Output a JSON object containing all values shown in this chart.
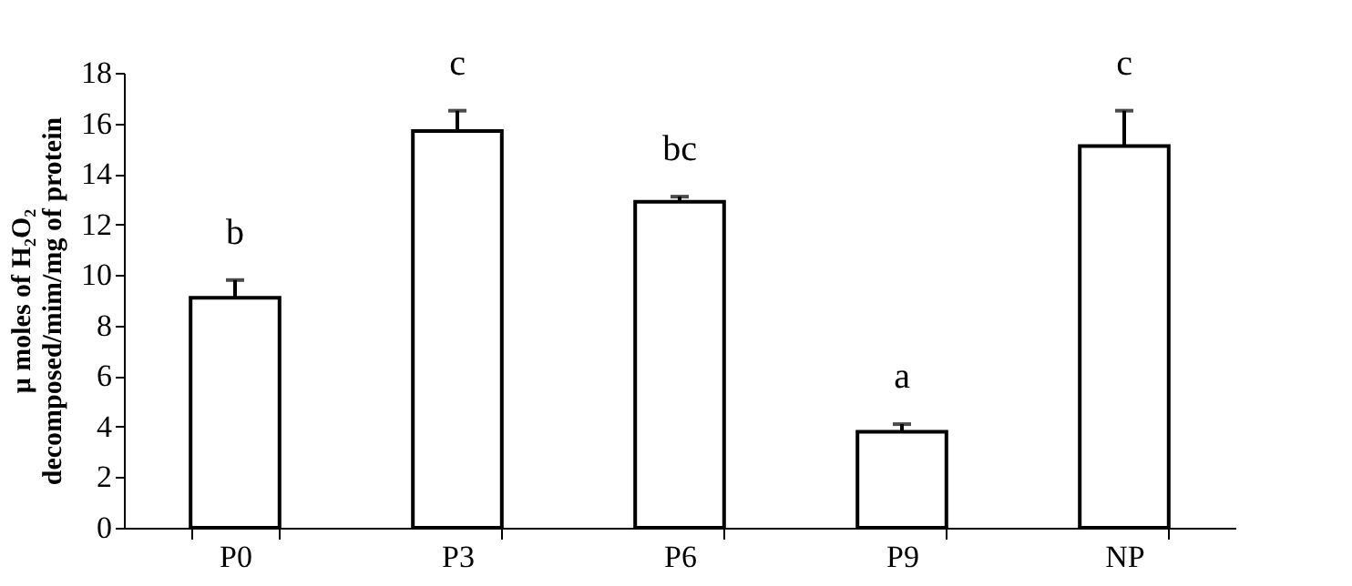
{
  "chart_data": {
    "type": "bar",
    "ylabel": "μ moles of H₂O₂\ndecomposed/mim/mg of protein",
    "categories": [
      "P0",
      "P3",
      "P6",
      "P9",
      "NP"
    ],
    "values": [
      9.1,
      15.7,
      12.9,
      3.8,
      15.1
    ],
    "errors": [
      0.7,
      0.8,
      0.2,
      0.3,
      1.4
    ],
    "color": "#ffffff",
    "ylim": [
      0,
      18
    ],
    "yticks": [
      0,
      2,
      4,
      6,
      8,
      10,
      12,
      14,
      16,
      18
    ],
    "grid": false,
    "annotations": [
      {
        "text": "b",
        "x": "P0",
        "y": 9.1
      },
      {
        "text": "c",
        "x": "P3",
        "y": 15.7
      },
      {
        "text": "bc",
        "x": "P6",
        "y": 12.9
      },
      {
        "text": "a",
        "x": "P9",
        "y": 3.8
      },
      {
        "text": "c",
        "x": "NP",
        "y": 15.1
      }
    ]
  }
}
